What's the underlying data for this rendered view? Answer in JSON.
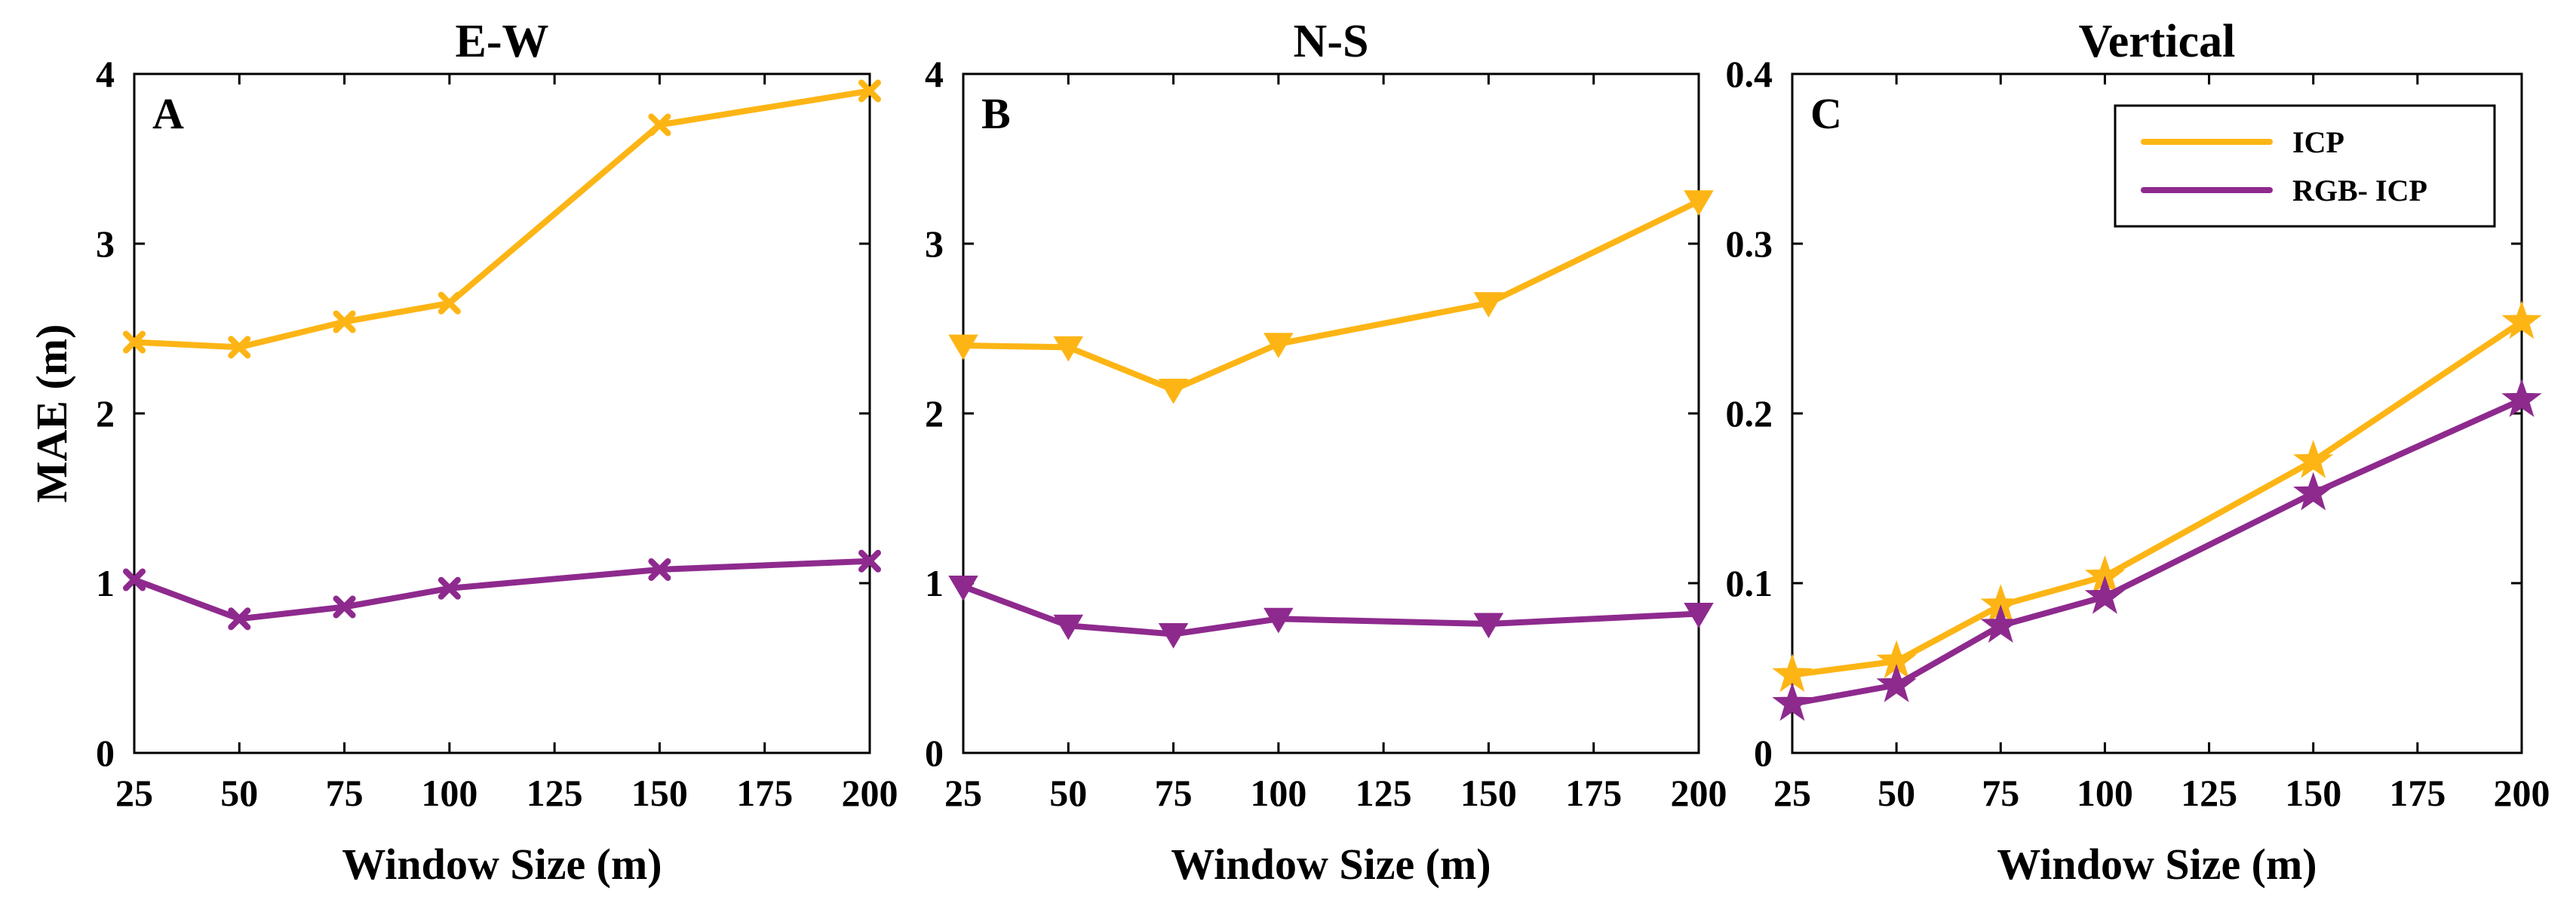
{
  "chart_data": [
    {
      "type": "line",
      "panel_label": "A",
      "title": "E-W",
      "xlabel": "Window Size (m)",
      "ylabel": "MAE (m)",
      "xlim": [
        25,
        200
      ],
      "ylim": [
        0,
        4
      ],
      "xticks": [
        "25",
        "50",
        "75",
        "100",
        "125",
        "150",
        "175",
        "200"
      ],
      "yticks": [
        "0",
        "1",
        "2",
        "3",
        "4"
      ],
      "marker": "x",
      "series": [
        {
          "name": "ICP",
          "color": "#FDB515",
          "x": [
            25,
            50,
            75,
            100,
            150,
            200
          ],
          "values": [
            2.42,
            2.39,
            2.54,
            2.65,
            3.7,
            3.9
          ]
        },
        {
          "name": "RGB- ICP",
          "color": "#8E2A8E",
          "x": [
            25,
            50,
            75,
            100,
            150,
            200
          ],
          "values": [
            1.02,
            0.79,
            0.86,
            0.97,
            1.08,
            1.13
          ]
        }
      ]
    },
    {
      "type": "line",
      "panel_label": "B",
      "title": "N-S",
      "xlabel": "Window Size (m)",
      "ylabel": "",
      "xlim": [
        25,
        200
      ],
      "ylim": [
        0,
        4
      ],
      "xticks": [
        "25",
        "50",
        "75",
        "100",
        "125",
        "150",
        "175",
        "200"
      ],
      "yticks": [
        "0",
        "1",
        "2",
        "3",
        "4"
      ],
      "marker": "triangle-down",
      "series": [
        {
          "name": "ICP",
          "color": "#FDB515",
          "x": [
            25,
            50,
            75,
            100,
            150,
            200
          ],
          "values": [
            2.4,
            2.39,
            2.14,
            2.41,
            2.65,
            3.25
          ]
        },
        {
          "name": "RGB- ICP",
          "color": "#8E2A8E",
          "x": [
            25,
            50,
            75,
            100,
            150,
            200
          ],
          "values": [
            0.98,
            0.75,
            0.7,
            0.79,
            0.76,
            0.82
          ]
        }
      ]
    },
    {
      "type": "line",
      "panel_label": "C",
      "title": "Vertical",
      "xlabel": "Window Size (m)",
      "ylabel": "",
      "xlim": [
        25,
        200
      ],
      "ylim": [
        0,
        0.4
      ],
      "xticks": [
        "25",
        "50",
        "75",
        "100",
        "125",
        "150",
        "175",
        "200"
      ],
      "yticks": [
        "0",
        "0.1",
        "0.2",
        "0.3",
        "0.4"
      ],
      "marker": "star",
      "legend": {
        "placement": "top-right",
        "entries": [
          "ICP",
          "RGB- ICP"
        ]
      },
      "series": [
        {
          "name": "ICP",
          "color": "#FDB515",
          "x": [
            25,
            50,
            75,
            100,
            150,
            200
          ],
          "values": [
            0.046,
            0.054,
            0.087,
            0.104,
            0.172,
            0.254
          ]
        },
        {
          "name": "RGB- ICP",
          "color": "#8E2A8E",
          "x": [
            25,
            50,
            75,
            100,
            150,
            200
          ],
          "values": [
            0.029,
            0.04,
            0.075,
            0.092,
            0.153,
            0.208
          ]
        }
      ]
    }
  ]
}
